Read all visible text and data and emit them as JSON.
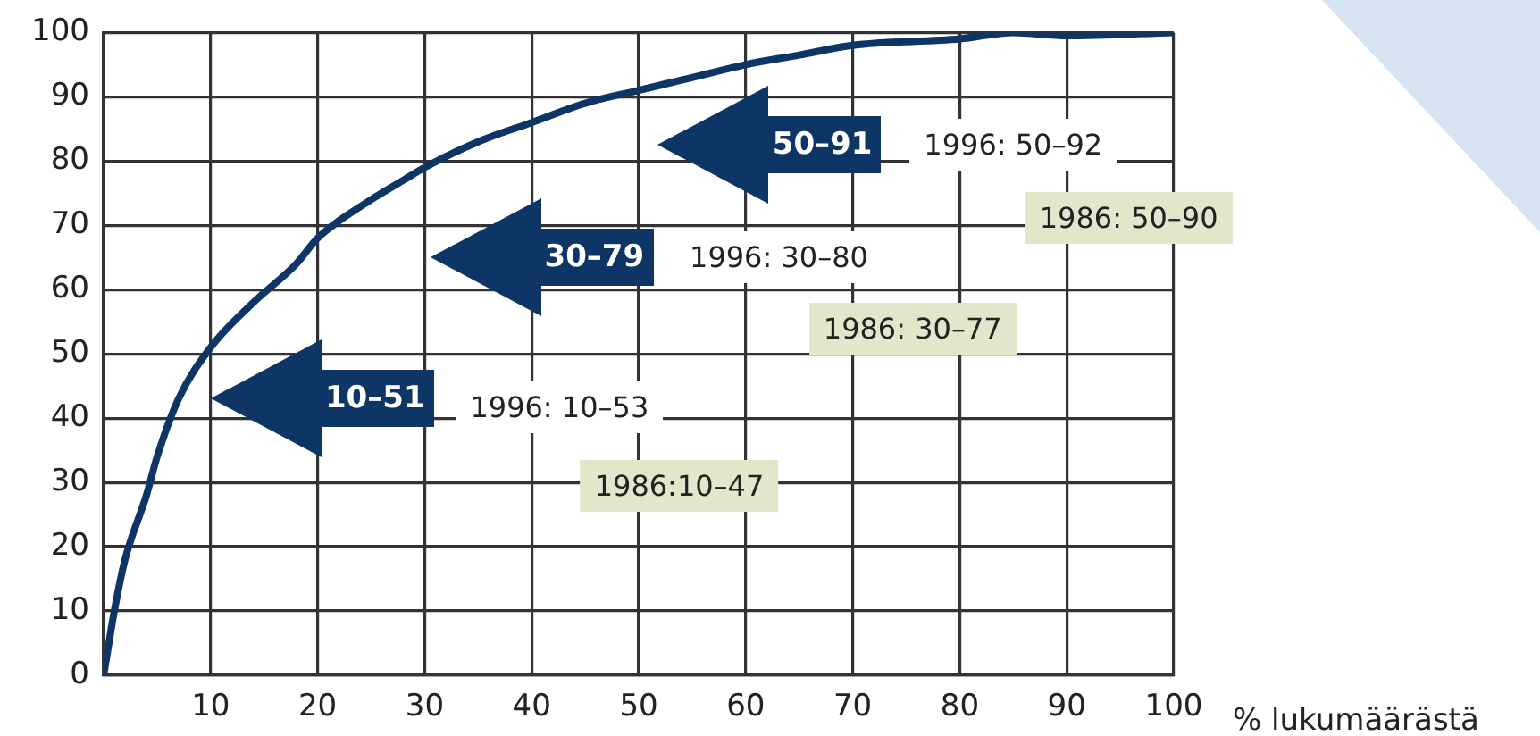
{
  "chart_data": {
    "type": "line",
    "xlabel": "% lukumäärästä",
    "x": [
      0,
      0.3,
      1,
      2,
      4,
      5,
      7,
      10,
      14,
      18,
      20,
      25,
      28,
      30,
      35,
      40,
      45,
      50,
      55,
      60,
      65,
      70,
      80,
      85,
      90,
      100
    ],
    "series": [
      {
        "color": "#0d3566",
        "values": [
          0,
          3,
          10,
          18,
          28,
          34,
          43,
          51,
          58,
          64,
          68,
          74,
          77,
          79,
          83,
          86,
          89,
          91,
          93,
          95,
          96.5,
          98,
          99,
          100,
          99.5,
          100
        ]
      }
    ],
    "xlim": [
      0,
      100
    ],
    "xticks": [
      {
        "value": 0,
        "label": null
      },
      10,
      20,
      30,
      40,
      50,
      60,
      70,
      80,
      90,
      100
    ],
    "ylim": [
      0,
      100
    ],
    "yticks": [
      0,
      10,
      20,
      30,
      40,
      50,
      60,
      70,
      80,
      90,
      100
    ],
    "grid": true,
    "legend": false,
    "marker": "none",
    "line_style": "solid",
    "annotations": [
      "10–51",
      "30–79",
      "50–91",
      "1996: 10–53",
      "1986:10–47",
      "1996: 30–80",
      "1986: 30–77",
      "1996: 50–92",
      "1986: 50–90"
    ]
  }
}
